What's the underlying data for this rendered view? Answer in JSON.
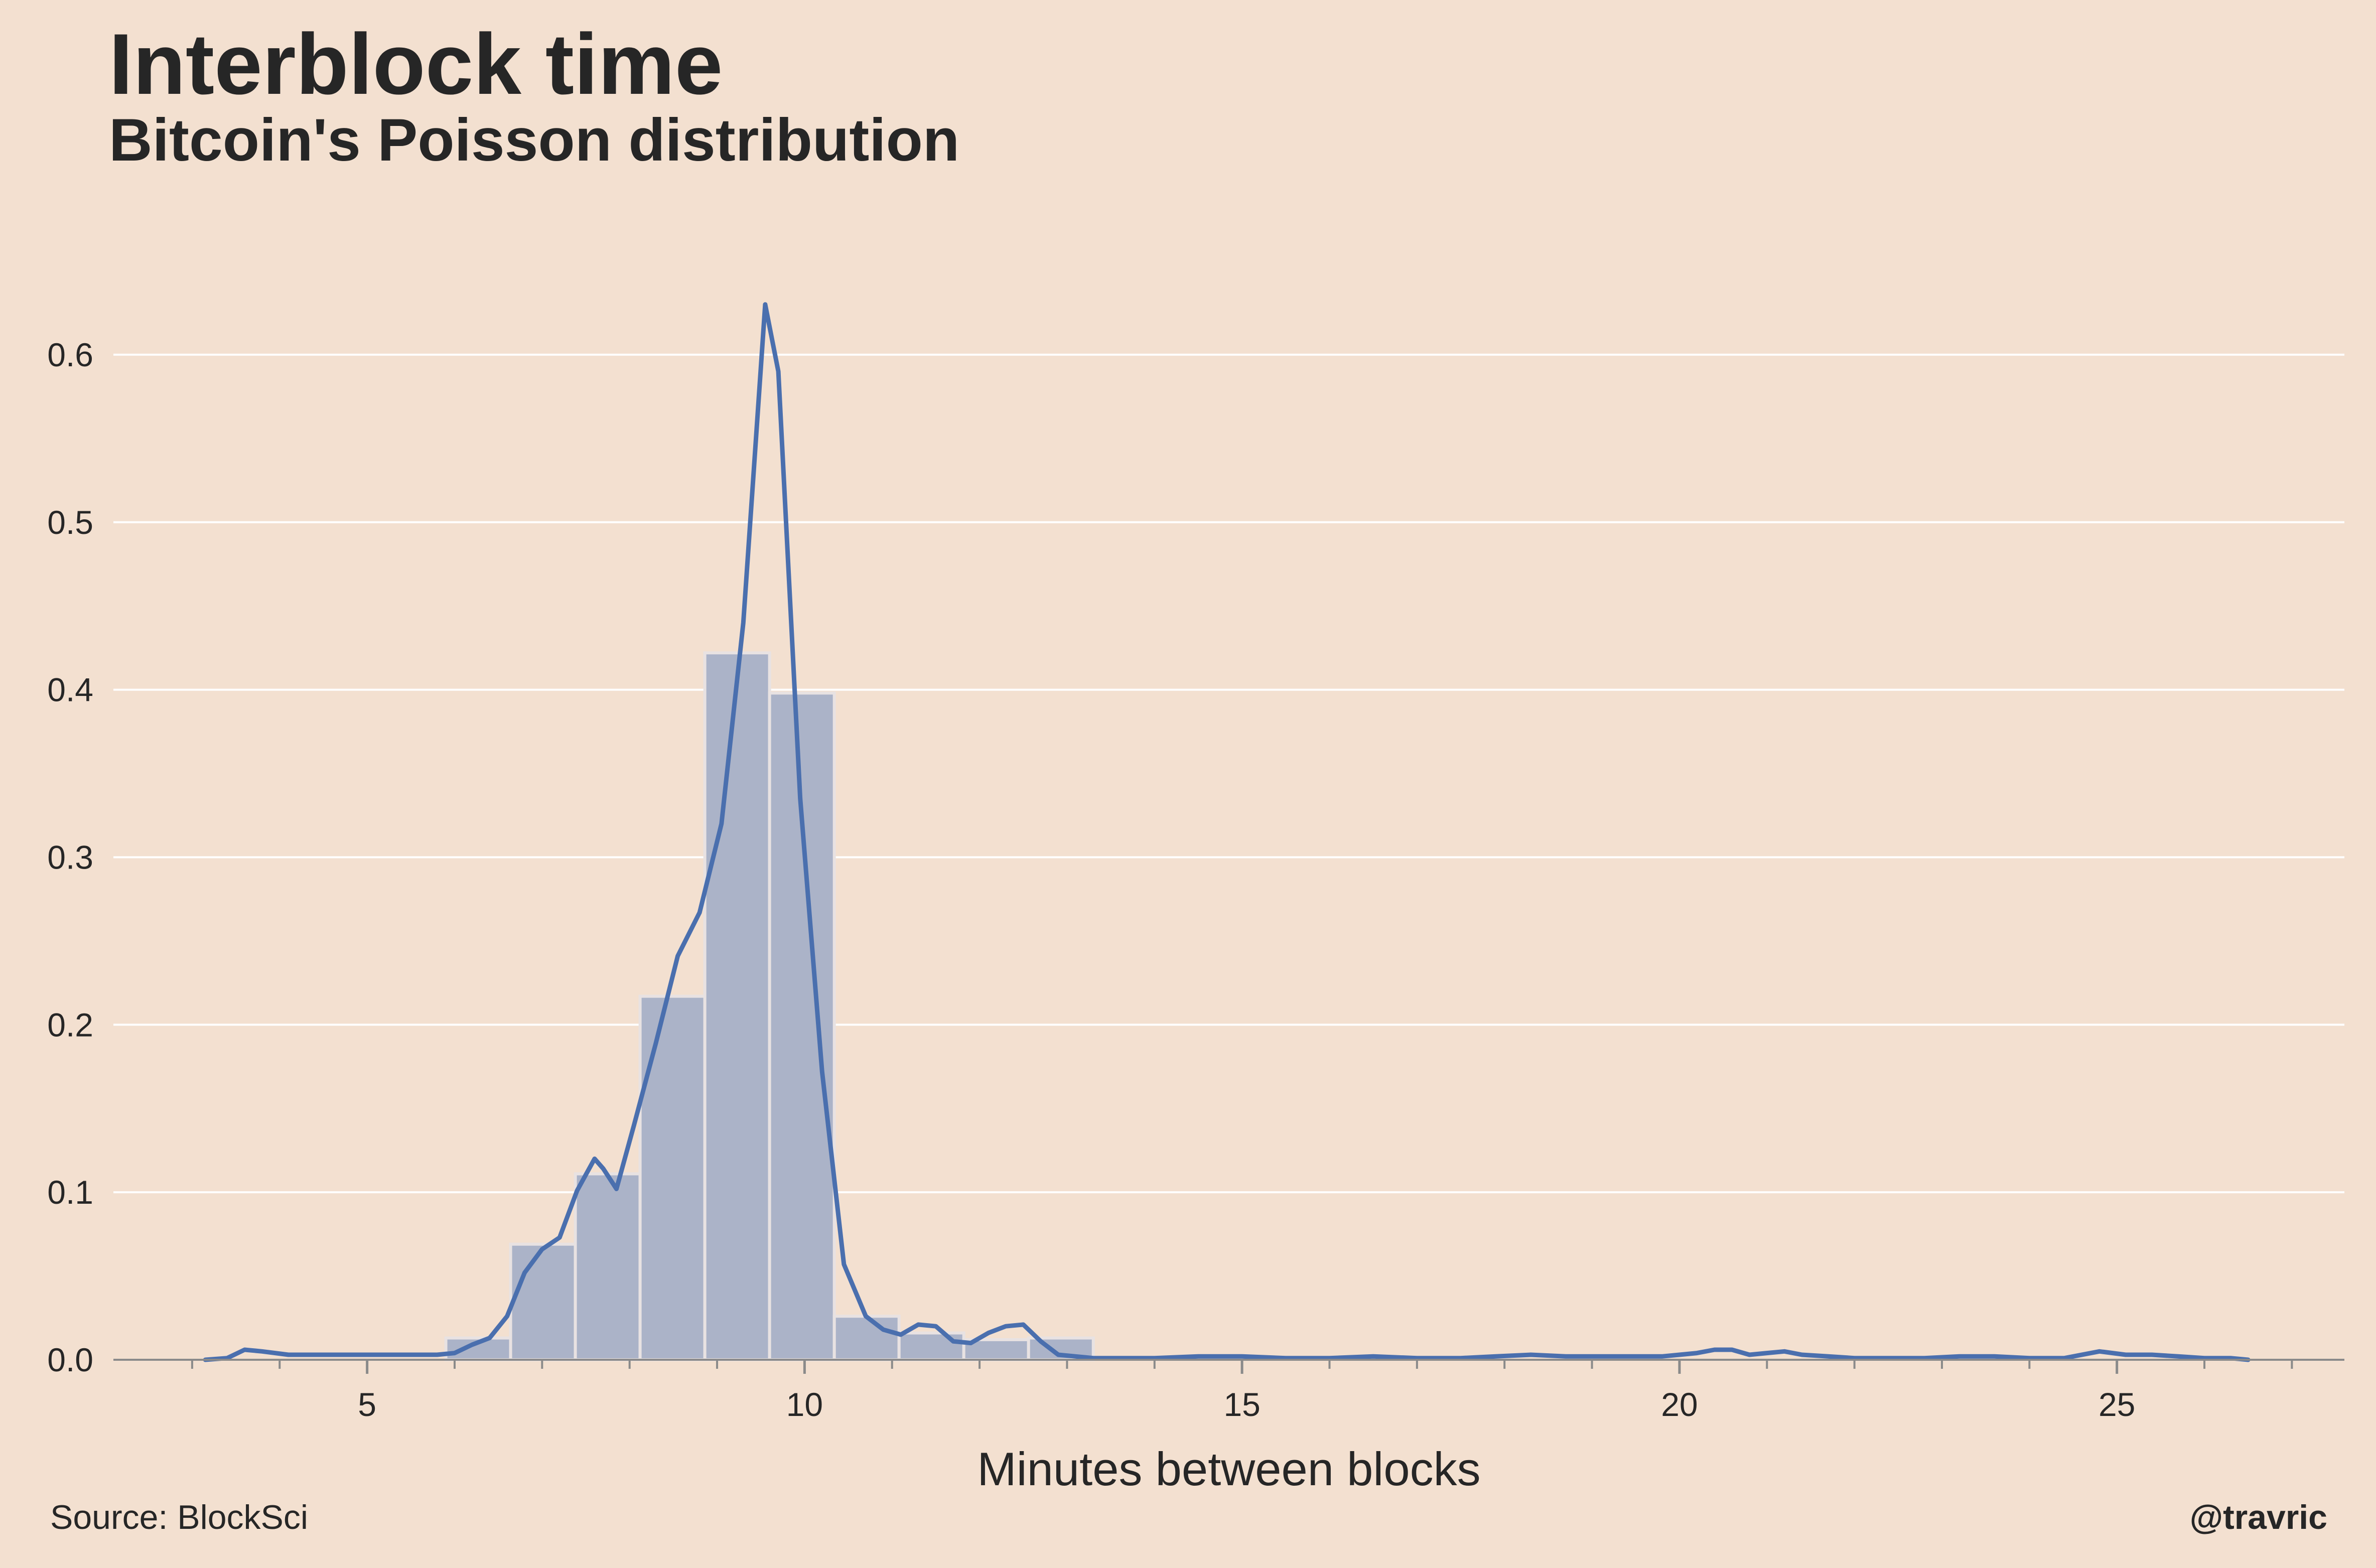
{
  "header": {
    "title": "Interblock time",
    "subtitle": "Bitcoin's Poisson distribution"
  },
  "footer": {
    "source": "Source: BlockSci",
    "credit": "@travric"
  },
  "colors": {
    "background": "#f3e0d0",
    "bars": "#abb3c8",
    "bar_edge": "#e8e2e2",
    "line": "#4a6fae",
    "grid": "#ffffff",
    "axis": "#8a8a8a"
  },
  "chart_data": {
    "type": "bar",
    "title": "Interblock time",
    "subtitle": "Bitcoin's Poisson distribution",
    "xlabel": "Minutes between blocks",
    "ylabel": "",
    "xlim": [
      2.1,
      27.6
    ],
    "ylim": [
      0.0,
      0.65
    ],
    "xticks": [
      5,
      10,
      15,
      20,
      25
    ],
    "xtick_labels": [
      "5",
      "10",
      "15",
      "20",
      "25"
    ],
    "yticks": [
      0.0,
      0.1,
      0.2,
      0.3,
      0.4,
      0.5,
      0.6
    ],
    "ytick_labels": [
      "0.0",
      "0.1",
      "0.2",
      "0.3",
      "0.4",
      "0.5",
      "0.6"
    ],
    "grid": "horizontal",
    "legend": "none",
    "histogram": {
      "bin_edges": [
        5.9,
        6.64,
        7.38,
        8.12,
        8.86,
        9.6,
        10.34,
        11.08,
        11.82,
        12.56,
        13.3
      ],
      "values": [
        0.013,
        0.069,
        0.111,
        0.217,
        0.422,
        0.398,
        0.026,
        0.016,
        0.012,
        0.013
      ]
    },
    "series": [
      {
        "x": [
          3.15,
          3.4,
          3.6,
          3.8,
          4.1,
          4.5,
          5.0,
          5.5,
          5.8,
          6.0,
          6.2,
          6.4,
          6.6,
          6.8,
          7.0,
          7.2,
          7.4,
          7.6,
          7.7,
          7.85,
          8.05,
          8.3,
          8.55,
          8.8,
          9.05,
          9.3,
          9.55,
          9.7,
          9.95,
          10.2,
          10.45,
          10.7,
          10.9,
          11.1,
          11.3,
          11.5,
          11.7,
          11.9,
          12.1,
          12.3,
          12.5,
          12.7,
          12.9,
          13.1,
          13.3,
          13.6,
          14.0,
          14.5,
          15.0,
          15.5,
          16.0,
          16.5,
          17.0,
          17.5,
          17.9,
          18.3,
          18.7,
          19.1,
          19.5,
          19.8,
          20.0,
          20.2,
          20.4,
          20.6,
          20.8,
          21.0,
          21.2,
          21.4,
          21.7,
          22.0,
          22.4,
          22.8,
          23.2,
          23.6,
          24.0,
          24.4,
          24.8,
          25.1,
          25.4,
          25.7,
          26.0,
          26.3,
          26.5
        ],
        "y": [
          0.0,
          0.001,
          0.006,
          0.005,
          0.003,
          0.003,
          0.003,
          0.003,
          0.003,
          0.004,
          0.009,
          0.013,
          0.026,
          0.052,
          0.066,
          0.073,
          0.101,
          0.12,
          0.114,
          0.102,
          0.14,
          0.189,
          0.241,
          0.267,
          0.32,
          0.44,
          0.63,
          0.59,
          0.335,
          0.172,
          0.057,
          0.026,
          0.018,
          0.015,
          0.021,
          0.02,
          0.011,
          0.01,
          0.016,
          0.02,
          0.021,
          0.011,
          0.003,
          0.002,
          0.001,
          0.001,
          0.001,
          0.002,
          0.002,
          0.001,
          0.001,
          0.002,
          0.001,
          0.001,
          0.002,
          0.003,
          0.002,
          0.002,
          0.002,
          0.002,
          0.003,
          0.004,
          0.006,
          0.006,
          0.003,
          0.004,
          0.005,
          0.003,
          0.002,
          0.001,
          0.001,
          0.001,
          0.002,
          0.002,
          0.001,
          0.001,
          0.005,
          0.003,
          0.003,
          0.002,
          0.001,
          0.001,
          0.0
        ]
      }
    ]
  }
}
